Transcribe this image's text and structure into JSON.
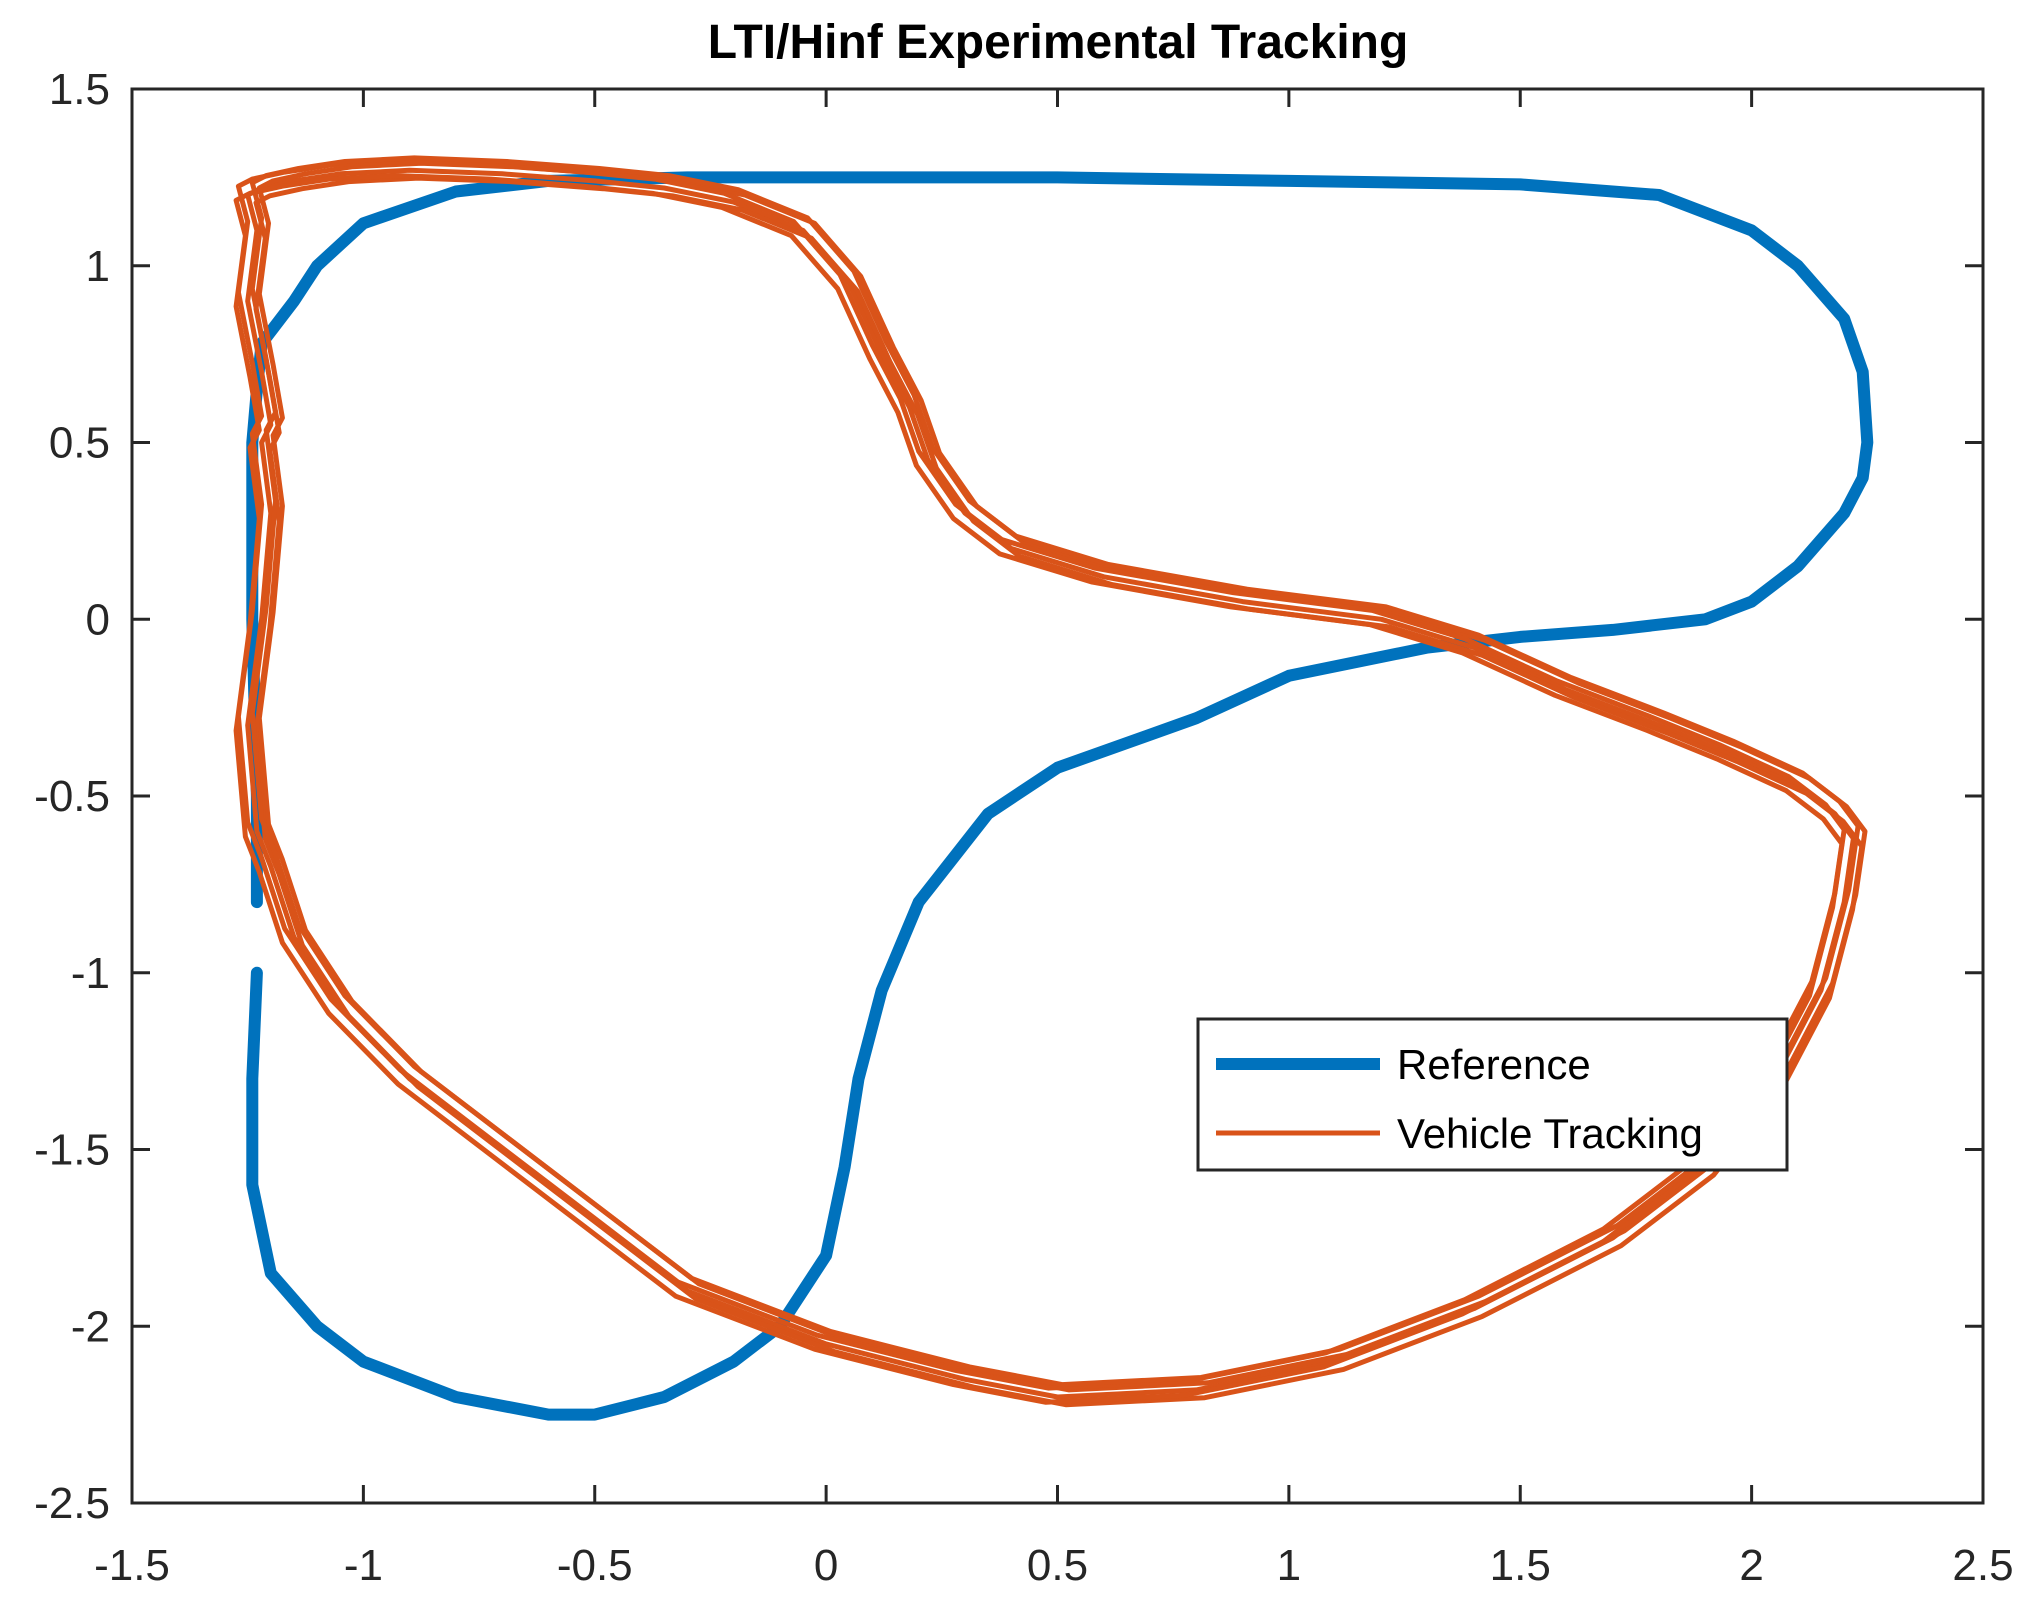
{
  "chart_data": {
    "type": "line",
    "title": "LTI/Hinf Experimental Tracking",
    "xlabel": "",
    "ylabel": "",
    "xlim": [
      -1.5,
      2.5
    ],
    "ylim": [
      -2.5,
      1.5
    ],
    "xticks": [
      -1.5,
      -1,
      -0.5,
      0,
      0.5,
      1,
      1.5,
      2,
      2.5
    ],
    "yticks": [
      -2.5,
      -2,
      -1.5,
      -1,
      -0.5,
      0,
      0.5,
      1,
      1.5
    ],
    "xtick_labels": [
      "-1.5",
      "-1",
      "-0.5",
      "0",
      "0.5",
      "1",
      "1.5",
      "2",
      "2.5"
    ],
    "ytick_labels": [
      "-2.5",
      "-2",
      "-1.5",
      "-1",
      "-0.5",
      "0",
      "0.5",
      "1",
      "1.5"
    ],
    "grid": false,
    "legend_position": "lower-right",
    "colors": {
      "reference": "#0072BD",
      "tracking": "#D95319",
      "axes": "#262626"
    },
    "series": [
      {
        "name": "Reference",
        "x": [
          -1.23,
          -1.23,
          -1.24,
          -1.24,
          -1.24,
          -1.23,
          -1.22,
          -1.15,
          -1.1,
          -1.0,
          -0.8,
          -0.6,
          -0.3,
          0.0,
          0.3,
          0.5,
          1.0,
          1.5,
          1.8,
          2.0,
          2.1,
          2.2,
          2.24,
          2.25,
          2.24,
          2.2,
          2.1,
          2.0,
          1.9,
          1.7,
          1.5,
          1.3,
          1.0,
          0.8,
          0.5,
          0.35,
          0.2,
          0.12,
          0.07,
          0.04,
          0.0,
          -0.1,
          -0.2,
          -0.35,
          -0.5,
          -0.6,
          -0.8,
          -1.0,
          -1.1,
          -1.2,
          -1.24,
          -1.24,
          -1.23
        ],
        "y": [
          -0.8,
          -0.5,
          0.0,
          0.3,
          0.5,
          0.65,
          0.78,
          0.9,
          1.0,
          1.12,
          1.21,
          1.24,
          1.25,
          1.25,
          1.25,
          1.25,
          1.24,
          1.23,
          1.2,
          1.1,
          1.0,
          0.85,
          0.7,
          0.5,
          0.4,
          0.3,
          0.15,
          0.05,
          0.0,
          -0.03,
          -0.05,
          -0.08,
          -0.16,
          -0.28,
          -0.42,
          -0.55,
          -0.8,
          -1.05,
          -1.3,
          -1.55,
          -1.8,
          -2.0,
          -2.1,
          -2.2,
          -2.25,
          -2.25,
          -2.2,
          -2.1,
          -2.0,
          -1.85,
          -1.6,
          -1.3,
          -1.0
        ]
      },
      {
        "name": "Vehicle Tracking",
        "x": [
          -1.22,
          -1.2,
          -1.22,
          -1.25,
          -1.23,
          -1.2,
          -1.15,
          -1.05,
          -0.9,
          -0.7,
          -0.5,
          -0.3,
          0.0,
          0.3,
          0.5,
          0.8,
          1.1,
          1.4,
          1.7,
          1.9,
          2.05,
          2.15,
          2.2,
          2.22,
          2.18,
          2.1,
          1.95,
          1.8,
          1.6,
          1.4,
          1.2,
          0.9,
          0.6,
          0.4,
          0.3,
          0.22,
          0.18,
          0.12,
          0.05,
          -0.05,
          -0.2,
          -0.35,
          -0.5,
          -0.7,
          -0.9,
          -1.05,
          -1.15,
          -1.22,
          -1.25,
          -1.23,
          -1.25,
          -1.22,
          -1.2,
          -1.22
        ],
        "y": [
          0.5,
          0.3,
          0.0,
          -0.3,
          -0.6,
          -0.7,
          -0.9,
          -1.1,
          -1.3,
          -1.5,
          -1.7,
          -1.9,
          -2.05,
          -2.15,
          -2.2,
          -2.18,
          -2.1,
          -1.95,
          -1.75,
          -1.55,
          -1.3,
          -1.05,
          -0.8,
          -0.62,
          -0.55,
          -0.47,
          -0.38,
          -0.3,
          -0.2,
          -0.08,
          0.0,
          0.05,
          0.12,
          0.2,
          0.3,
          0.45,
          0.6,
          0.75,
          0.95,
          1.1,
          1.18,
          1.22,
          1.24,
          1.26,
          1.27,
          1.26,
          1.24,
          1.22,
          1.2,
          1.1,
          0.9,
          0.7,
          0.55,
          0.5
        ]
      }
    ]
  }
}
